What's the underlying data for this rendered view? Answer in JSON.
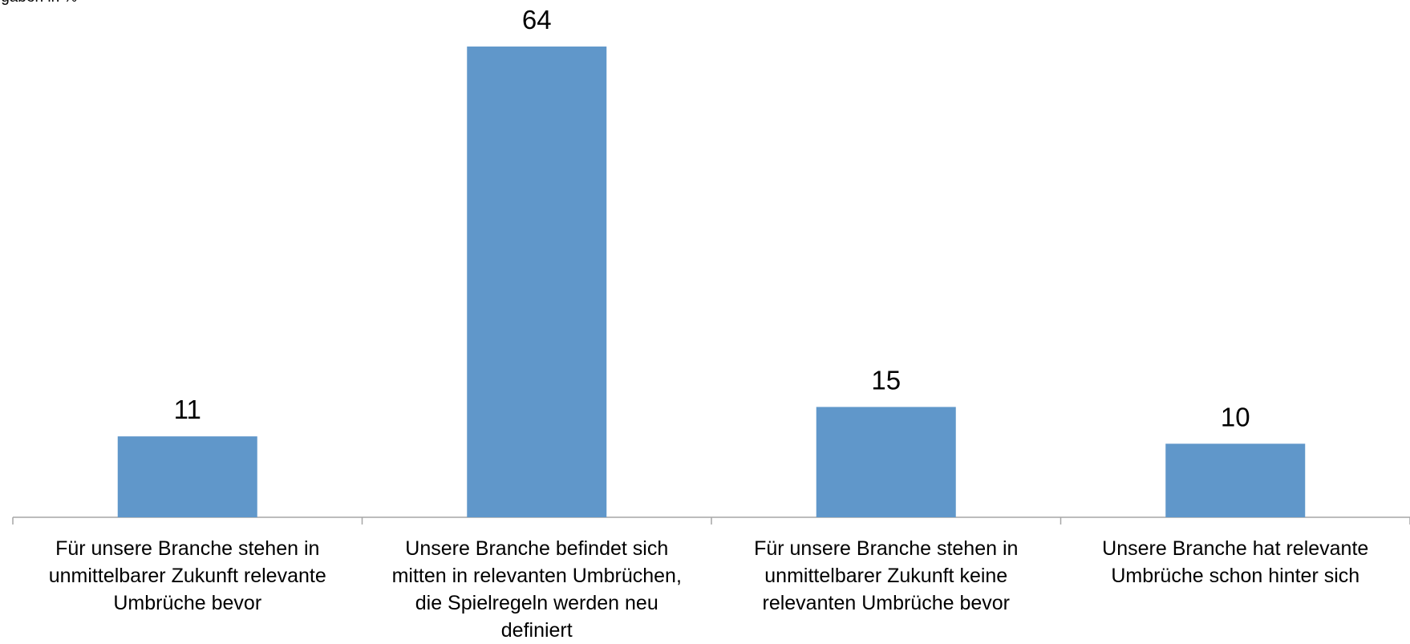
{
  "chart_data": {
    "type": "bar",
    "subtitle": "Angaben in %",
    "categories": [
      "Für unsere Branche stehen in unmittelbarer Zukunft relevante Umbrüche bevor",
      "Unsere Branche befindet sich mitten in relevanten Umbrüchen, die Spielregeln werden neu definiert",
      "Für unsere Branche stehen in unmittelbarer Zukunft keine relevanten Umbrüche bevor",
      "Unsere Branche hat relevante Umbrüche schon hinter sich"
    ],
    "values": [
      11,
      64,
      15,
      10
    ],
    "color": "#6097ca",
    "ylim": [
      0,
      70
    ]
  }
}
